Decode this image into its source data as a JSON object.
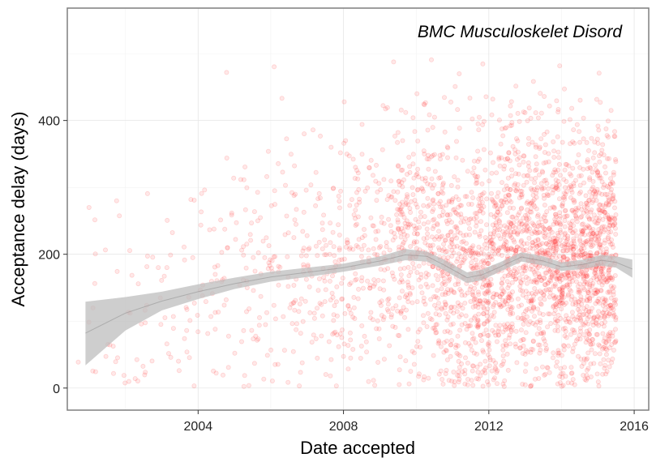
{
  "chart_data": {
    "type": "scatter",
    "title": "",
    "annotation": "BMC Musculoskelet Disord",
    "xlabel": "Date accepted",
    "ylabel": "Acceptance delay (days)",
    "xlim": [
      2000.4,
      2016.4
    ],
    "ylim": [
      -33,
      568
    ],
    "x_ticks": [
      2004,
      2008,
      2012,
      2016
    ],
    "x_tick_labels": [
      "2004",
      "2008",
      "2012",
      "2016"
    ],
    "y_ticks": [
      0,
      200,
      400
    ],
    "y_tick_labels": [
      "0",
      "200",
      "400"
    ],
    "grid": true,
    "legend": "none",
    "point_color": "#ff2020",
    "point_opacity": 0.15,
    "band_color": "#bdbdbd",
    "smooth_line_color": "#7a7a7a",
    "approx_point_count": 3000,
    "density_by_year": [
      {
        "year": 2001,
        "relative_density": 0.02
      },
      {
        "year": 2002,
        "relative_density": 0.04
      },
      {
        "year": 2003,
        "relative_density": 0.05
      },
      {
        "year": 2004,
        "relative_density": 0.07
      },
      {
        "year": 2005,
        "relative_density": 0.09
      },
      {
        "year": 2006,
        "relative_density": 0.12
      },
      {
        "year": 2007,
        "relative_density": 0.16
      },
      {
        "year": 2008,
        "relative_density": 0.2
      },
      {
        "year": 2009,
        "relative_density": 0.26
      },
      {
        "year": 2010,
        "relative_density": 0.45
      },
      {
        "year": 2011,
        "relative_density": 0.55
      },
      {
        "year": 2012,
        "relative_density": 0.7
      },
      {
        "year": 2013,
        "relative_density": 0.85
      },
      {
        "year": 2014,
        "relative_density": 0.9
      },
      {
        "year": 2015,
        "relative_density": 1.0
      }
    ],
    "smooth": [
      {
        "x": 2000.9,
        "y": 82,
        "lo": 34,
        "hi": 129
      },
      {
        "x": 2002.0,
        "y": 112,
        "lo": 86,
        "hi": 136
      },
      {
        "x": 2003.0,
        "y": 130,
        "lo": 116,
        "hi": 144
      },
      {
        "x": 2004.0,
        "y": 144,
        "lo": 133,
        "hi": 155
      },
      {
        "x": 2005.0,
        "y": 156,
        "lo": 148,
        "hi": 165
      },
      {
        "x": 2006.0,
        "y": 166,
        "lo": 159,
        "hi": 174
      },
      {
        "x": 2007.0,
        "y": 173,
        "lo": 166,
        "hi": 180
      },
      {
        "x": 2008.0,
        "y": 180,
        "lo": 174,
        "hi": 186
      },
      {
        "x": 2009.0,
        "y": 190,
        "lo": 183,
        "hi": 197
      },
      {
        "x": 2009.7,
        "y": 199,
        "lo": 191,
        "hi": 208
      },
      {
        "x": 2010.3,
        "y": 197,
        "lo": 189,
        "hi": 204
      },
      {
        "x": 2010.8,
        "y": 183,
        "lo": 175,
        "hi": 191
      },
      {
        "x": 2011.4,
        "y": 165,
        "lo": 157,
        "hi": 173
      },
      {
        "x": 2011.8,
        "y": 169,
        "lo": 161,
        "hi": 177
      },
      {
        "x": 2012.3,
        "y": 181,
        "lo": 174,
        "hi": 188
      },
      {
        "x": 2012.9,
        "y": 196,
        "lo": 189,
        "hi": 203
      },
      {
        "x": 2013.5,
        "y": 190,
        "lo": 183,
        "hi": 197
      },
      {
        "x": 2014.0,
        "y": 181,
        "lo": 175,
        "hi": 188
      },
      {
        "x": 2014.6,
        "y": 185,
        "lo": 178,
        "hi": 192
      },
      {
        "x": 2015.1,
        "y": 191,
        "lo": 183,
        "hi": 199
      },
      {
        "x": 2015.5,
        "y": 188,
        "lo": 180,
        "hi": 197
      },
      {
        "x": 2015.95,
        "y": 178,
        "lo": 165,
        "hi": 192
      }
    ]
  }
}
